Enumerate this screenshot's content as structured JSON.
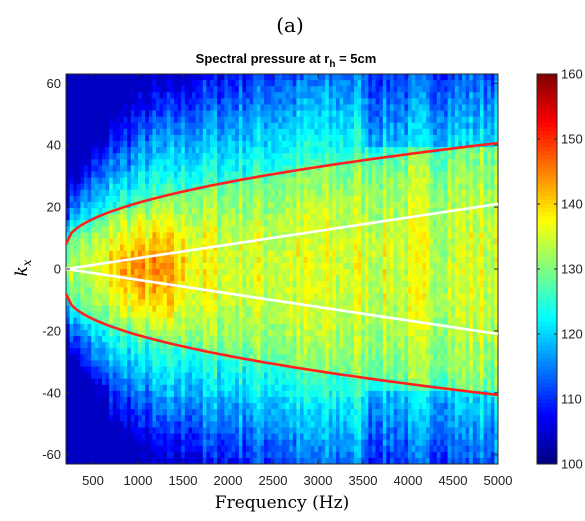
{
  "panel_label": "(a)",
  "chart_data": {
    "type": "heatmap",
    "title": "Spectral pressure at r",
    "title_subscript": "h",
    "title_suffix": " = 5cm",
    "xlabel": "Frequency (Hz)",
    "ylabel_main": "k",
    "ylabel_sub": "x",
    "xlim": [
      200,
      5000
    ],
    "ylim": [
      -63,
      63
    ],
    "xticks": [
      500,
      1000,
      1500,
      2000,
      2500,
      3000,
      3500,
      4000,
      4500,
      5000
    ],
    "xtick_labels": [
      "500",
      "1000",
      "1500",
      "2000",
      "2500",
      "3000",
      "3500",
      "4000",
      "4500",
      "5000"
    ],
    "yticks": [
      60,
      40,
      20,
      0,
      -20,
      -40,
      -60
    ],
    "ytick_labels": [
      "60",
      "40",
      "20",
      "0",
      "-20",
      "-40",
      "-60"
    ],
    "colorbar": {
      "min": 100,
      "max": 160,
      "ticks": [
        160,
        150,
        140,
        130,
        120,
        110,
        100
      ],
      "tick_labels": [
        "160",
        "150",
        "140",
        "130",
        "120",
        "110",
        "100"
      ],
      "colormap": "jet"
    },
    "series": [
      {
        "color": "#ff2020",
        "x": [
          200,
          1000,
          2000,
          3000,
          4000,
          5000
        ],
        "y": [
          8,
          18.2,
          25.7,
          31.5,
          36.4,
          40.7
        ]
      },
      {
        "color": "#ff2020",
        "x": [
          200,
          1000,
          2000,
          3000,
          4000,
          5000
        ],
        "y": [
          -8,
          -18.2,
          -25.7,
          -31.5,
          -36.4,
          -40.7
        ]
      },
      {
        "color": "#ffffff",
        "x": [
          200,
          5000
        ],
        "y": [
          0,
          21
        ]
      },
      {
        "color": "#ffffff",
        "x": [
          200,
          5000
        ],
        "y": [
          0,
          -21
        ]
      }
    ],
    "grid": false
  }
}
